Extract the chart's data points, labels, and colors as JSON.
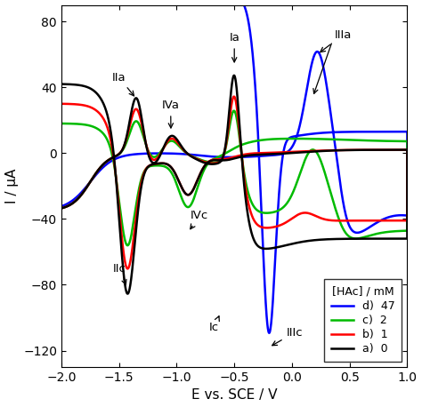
{
  "xlim": [
    -2.0,
    1.0
  ],
  "ylim": [
    -130,
    90
  ],
  "xlabel": "E vs. SCE / V",
  "ylabel": "I / μA",
  "xticks": [
    -2.0,
    -1.5,
    -1.0,
    -0.5,
    0.0,
    0.5,
    1.0
  ],
  "yticks": [
    -120,
    -80,
    -40,
    0,
    40,
    80
  ],
  "colors": {
    "a": "#000000",
    "b": "#ff0000",
    "c": "#00bb00",
    "d": "#0000ff"
  },
  "legend_title": "[HAc] / mM",
  "legend_entries": [
    "a)  0",
    "b)  1",
    "c)  2",
    "d)  47"
  ],
  "linewidth": 1.8,
  "background": "#ffffff"
}
